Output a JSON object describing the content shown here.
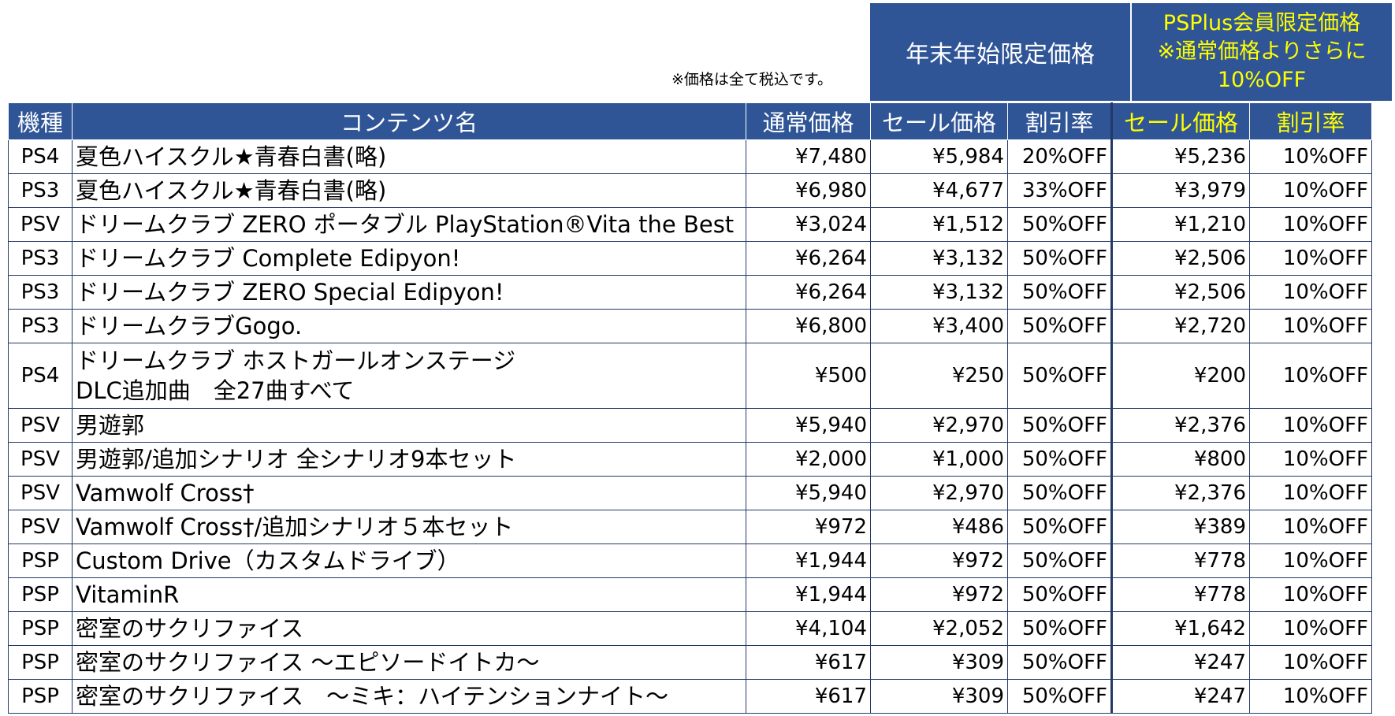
{
  "note": "※価格は全て税込です。",
  "groups": {
    "year_end": "年末年始限定価格",
    "psplus": "PSPlus会員限定価格\n※通常価格よりさらに\n10%OFF"
  },
  "columns": {
    "platform": "機種",
    "title": "コンテンツ名",
    "regular": "通常価格",
    "sale": "セール価格",
    "discount": "割引率",
    "ps_sale": "セール価格",
    "ps_discount": "割引率"
  },
  "rows": [
    {
      "platform": "PS4",
      "title": "夏色ハイスクル★青春白書(略)",
      "regular": "¥7,480",
      "sale": "¥5,984",
      "discount": "20%OFF",
      "ps_sale": "¥5,236",
      "ps_discount": "10%OFF"
    },
    {
      "platform": "PS3",
      "title": "夏色ハイスクル★青春白書(略)",
      "regular": "¥6,980",
      "sale": "¥4,677",
      "discount": "33%OFF",
      "ps_sale": "¥3,979",
      "ps_discount": "10%OFF"
    },
    {
      "platform": "PSV",
      "title": "ドリームクラブ ZERO ポータブル PlayStation®Vita the Best",
      "regular": "¥3,024",
      "sale": "¥1,512",
      "discount": "50%OFF",
      "ps_sale": "¥1,210",
      "ps_discount": "10%OFF"
    },
    {
      "platform": "PS3",
      "title": "ドリームクラブ Complete Edipyon!",
      "regular": "¥6,264",
      "sale": "¥3,132",
      "discount": "50%OFF",
      "ps_sale": "¥2,506",
      "ps_discount": "10%OFF"
    },
    {
      "platform": "PS3",
      "title": "ドリームクラブ ZERO Special Edipyon!",
      "regular": "¥6,264",
      "sale": "¥3,132",
      "discount": "50%OFF",
      "ps_sale": "¥2,506",
      "ps_discount": "10%OFF"
    },
    {
      "platform": "PS3",
      "title": "ドリームクラブGogo.",
      "regular": "¥6,800",
      "sale": "¥3,400",
      "discount": "50%OFF",
      "ps_sale": "¥2,720",
      "ps_discount": "10%OFF"
    },
    {
      "platform": "PS4",
      "title": "ドリームクラブ ホストガールオンステージ\nDLC追加曲　全27曲すべて",
      "regular": "¥500",
      "sale": "¥250",
      "discount": "50%OFF",
      "ps_sale": "¥200",
      "ps_discount": "10%OFF"
    },
    {
      "platform": "PSV",
      "title": "男遊郭",
      "regular": "¥5,940",
      "sale": "¥2,970",
      "discount": "50%OFF",
      "ps_sale": "¥2,376",
      "ps_discount": "10%OFF"
    },
    {
      "platform": "PSV",
      "title": "男遊郭/追加シナリオ 全シナリオ9本セット",
      "regular": "¥2,000",
      "sale": "¥1,000",
      "discount": "50%OFF",
      "ps_sale": "¥800",
      "ps_discount": "10%OFF"
    },
    {
      "platform": "PSV",
      "title": "Vamwolf Cross†",
      "regular": "¥5,940",
      "sale": "¥2,970",
      "discount": "50%OFF",
      "ps_sale": "¥2,376",
      "ps_discount": "10%OFF"
    },
    {
      "platform": "PSV",
      "title": "Vamwolf Cross†/追加シナリオ５本セット",
      "regular": "¥972",
      "sale": "¥486",
      "discount": "50%OFF",
      "ps_sale": "¥389",
      "ps_discount": "10%OFF"
    },
    {
      "platform": "PSP",
      "title": "Custom Drive（カスタムドライブ）",
      "regular": "¥1,944",
      "sale": "¥972",
      "discount": "50%OFF",
      "ps_sale": "¥778",
      "ps_discount": "10%OFF"
    },
    {
      "platform": "PSP",
      "title": "VitaminR",
      "regular": "¥1,944",
      "sale": "¥972",
      "discount": "50%OFF",
      "ps_sale": "¥778",
      "ps_discount": "10%OFF"
    },
    {
      "platform": "PSP",
      "title": "密室のサクリファイス",
      "regular": "¥4,104",
      "sale": "¥2,052",
      "discount": "50%OFF",
      "ps_sale": "¥1,642",
      "ps_discount": "10%OFF"
    },
    {
      "platform": "PSP",
      "title": "密室のサクリファイス ～エピソードイトカ～",
      "regular": "¥617",
      "sale": "¥309",
      "discount": "50%OFF",
      "ps_sale": "¥247",
      "ps_discount": "10%OFF"
    },
    {
      "platform": "PSP",
      "title": "密室のサクリファイス　～ミキ：ハイテンションナイト～",
      "regular": "¥617",
      "sale": "¥309",
      "discount": "50%OFF",
      "ps_sale": "¥247",
      "ps_discount": "10%OFF"
    }
  ],
  "colors": {
    "header_bg": "#2f5597",
    "header_text": "#ffffff",
    "psplus_text": "#ffff00",
    "border": "#243a66"
  }
}
